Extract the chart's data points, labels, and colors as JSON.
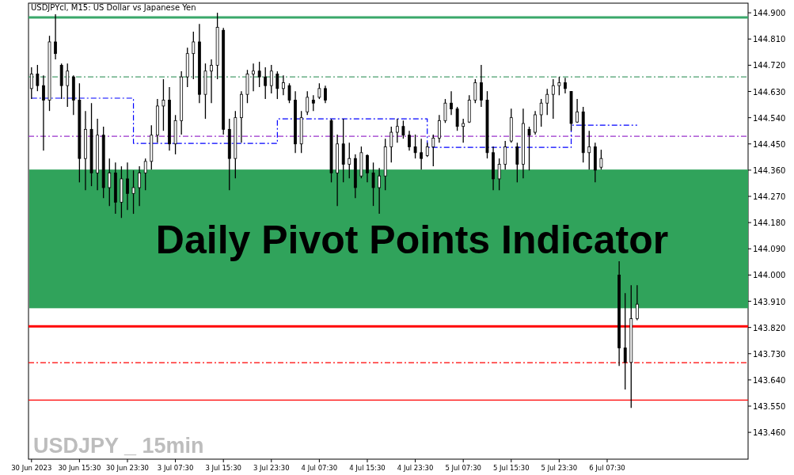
{
  "chart_data": {
    "type": "candlestick",
    "title": "USDJPYcl, M15:  US Dollar vs Japanese Yen",
    "annotations": [
      "Daily Pivot Points Indicator",
      "USDJPY _ 15min"
    ],
    "color": "#000000",
    "categories": [
      "30 Jun 2023",
      null,
      null,
      null,
      null,
      null,
      null,
      null,
      "30 Jun 15:30",
      null,
      null,
      null,
      null,
      null,
      null,
      null,
      "30 Jun 23:30",
      null,
      null,
      null,
      null,
      null,
      null,
      null,
      "3 Jul 07:30",
      null,
      null,
      null,
      null,
      null,
      null,
      null,
      "3 Jul 15:30",
      null,
      null,
      null,
      null,
      null,
      null,
      null,
      "3 Jul 23:30",
      null,
      null,
      null,
      null,
      null,
      null,
      null,
      "4 Jul 07:30",
      null,
      null,
      null,
      null,
      null,
      null,
      null,
      "4 Jul 15:30",
      null,
      null,
      null,
      null,
      null,
      null,
      null,
      "4 Jul 23:30",
      null,
      null,
      null,
      null,
      null,
      null,
      null,
      "5 Jul 07:30",
      null,
      null,
      null,
      null,
      null,
      null,
      null,
      "5 Jul 15:30",
      null,
      null,
      null,
      null,
      null,
      null,
      null,
      "5 Jul 23:30",
      null,
      null,
      null,
      null,
      null,
      null,
      null,
      "6 Jul 07:30",
      null,
      null,
      null,
      null,
      null,
      null,
      null,
      null,
      null,
      null,
      null,
      null,
      null,
      null,
      null,
      null,
      null,
      null,
      null,
      null,
      null,
      null,
      null
    ],
    "ohlc": [
      [
        144.64,
        144.713,
        144.604,
        144.69
      ],
      [
        144.69,
        144.721,
        144.631,
        144.65
      ],
      [
        144.65,
        144.685,
        144.427,
        144.6
      ],
      [
        144.6,
        144.821,
        144.563,
        144.8
      ],
      [
        144.8,
        144.895,
        144.74,
        144.76
      ],
      [
        144.72,
        144.726,
        144.604,
        144.65
      ],
      [
        144.65,
        144.726,
        144.577,
        144.7
      ],
      [
        144.68,
        144.685,
        144.549,
        144.6
      ],
      [
        144.6,
        144.658,
        144.318,
        144.4
      ],
      [
        144.4,
        144.563,
        144.291,
        144.5
      ],
      [
        144.5,
        144.59,
        144.305,
        144.35
      ],
      [
        144.35,
        144.536,
        144.291,
        144.48
      ],
      [
        144.48,
        144.509,
        144.264,
        144.3
      ],
      [
        144.3,
        144.4,
        144.237,
        144.35
      ],
      [
        144.35,
        144.386,
        144.21,
        144.25
      ],
      [
        144.25,
        144.373,
        144.196,
        144.33
      ],
      [
        144.33,
        144.386,
        144.223,
        144.28
      ],
      [
        144.28,
        144.359,
        144.21,
        144.3
      ],
      [
        144.3,
        144.373,
        144.237,
        144.35
      ],
      [
        144.35,
        144.4,
        144.291,
        144.39
      ],
      [
        144.39,
        144.514,
        144.362,
        144.48
      ],
      [
        144.48,
        144.604,
        144.454,
        144.58
      ],
      [
        144.58,
        144.672,
        144.495,
        144.6
      ],
      [
        144.6,
        144.645,
        144.427,
        144.45
      ],
      [
        144.45,
        144.549,
        144.414,
        144.53
      ],
      [
        144.53,
        144.699,
        144.482,
        144.68
      ],
      [
        144.68,
        144.78,
        144.645,
        144.76
      ],
      [
        144.76,
        144.835,
        144.672,
        144.8
      ],
      [
        144.8,
        144.862,
        144.59,
        144.62
      ],
      [
        144.62,
        144.726,
        144.536,
        144.7
      ],
      [
        144.7,
        144.74,
        144.59,
        144.72
      ],
      [
        144.72,
        144.9,
        144.672,
        144.85
      ],
      [
        144.84,
        144.848,
        144.482,
        144.5
      ],
      [
        144.5,
        144.536,
        144.291,
        144.4
      ],
      [
        144.4,
        144.563,
        144.332,
        144.54
      ],
      [
        144.54,
        144.631,
        144.454,
        144.62
      ],
      [
        144.62,
        144.704,
        144.59,
        144.69
      ],
      [
        144.69,
        144.726,
        144.631,
        144.7
      ],
      [
        144.7,
        144.732,
        144.645,
        144.68
      ],
      [
        144.68,
        144.713,
        144.604,
        144.65
      ],
      [
        144.65,
        144.721,
        144.623,
        144.7
      ],
      [
        144.69,
        144.699,
        144.604,
        144.64
      ],
      [
        144.64,
        144.685,
        144.617,
        144.66
      ],
      [
        144.65,
        144.658,
        144.59,
        144.6
      ],
      [
        144.6,
        144.631,
        144.419,
        144.45
      ],
      [
        144.45,
        144.563,
        144.419,
        144.54
      ],
      [
        144.56,
        144.631,
        144.549,
        144.61
      ],
      [
        144.6,
        144.617,
        144.563,
        144.59
      ],
      [
        144.61,
        144.658,
        144.604,
        144.64
      ],
      [
        144.64,
        144.65,
        144.59,
        144.6
      ],
      [
        144.53,
        144.536,
        144.318,
        144.35
      ],
      [
        144.35,
        144.482,
        144.237,
        144.45
      ],
      [
        144.45,
        144.536,
        144.318,
        144.38
      ],
      [
        144.38,
        144.454,
        144.332,
        144.4
      ],
      [
        144.4,
        144.414,
        144.264,
        144.3
      ],
      [
        144.34,
        144.441,
        144.332,
        144.42
      ],
      [
        144.41,
        144.414,
        144.318,
        144.35
      ],
      [
        144.35,
        144.386,
        144.237,
        144.3
      ],
      [
        144.3,
        144.367,
        144.21,
        144.34
      ],
      [
        144.34,
        144.468,
        144.291,
        144.44
      ],
      [
        144.44,
        144.509,
        144.386,
        144.49
      ],
      [
        144.49,
        144.536,
        144.454,
        144.51
      ],
      [
        144.51,
        144.53,
        144.468,
        144.48
      ],
      [
        144.48,
        144.495,
        144.427,
        144.44
      ],
      [
        144.44,
        144.482,
        144.4,
        144.42
      ],
      [
        144.42,
        144.468,
        144.362,
        144.4
      ],
      [
        144.41,
        144.454,
        144.405,
        144.44
      ],
      [
        144.44,
        144.482,
        144.373,
        144.47
      ],
      [
        144.47,
        144.549,
        144.454,
        144.53
      ],
      [
        144.53,
        144.604,
        144.522,
        144.59
      ],
      [
        144.59,
        144.631,
        144.549,
        144.57
      ],
      [
        144.57,
        144.577,
        144.495,
        144.51
      ],
      [
        144.51,
        144.536,
        144.454,
        144.52
      ],
      [
        144.525,
        144.617,
        144.522,
        144.6
      ],
      [
        144.6,
        144.672,
        144.59,
        144.66
      ],
      [
        144.66,
        144.721,
        144.577,
        144.6
      ],
      [
        144.6,
        144.631,
        144.4,
        144.42
      ],
      [
        144.42,
        144.441,
        144.291,
        144.33
      ],
      [
        144.33,
        144.4,
        144.291,
        144.38
      ],
      [
        144.38,
        144.46,
        144.362,
        144.44
      ],
      [
        144.46,
        144.571,
        144.454,
        144.54
      ],
      [
        144.44,
        144.454,
        144.318,
        144.38
      ],
      [
        144.38,
        144.571,
        144.332,
        144.52
      ],
      [
        144.5,
        144.509,
        144.359,
        144.48
      ],
      [
        144.49,
        144.563,
        144.482,
        144.55
      ],
      [
        144.55,
        144.604,
        144.509,
        144.59
      ],
      [
        144.59,
        144.639,
        144.549,
        144.62
      ],
      [
        144.62,
        144.672,
        144.536,
        144.65
      ],
      [
        144.65,
        144.68,
        144.617,
        144.66
      ],
      [
        144.66,
        144.677,
        144.623,
        144.64
      ],
      [
        144.63,
        144.631,
        144.495,
        144.52
      ],
      [
        144.525,
        144.604,
        144.522,
        144.56
      ],
      [
        144.56,
        144.577,
        144.386,
        144.42
      ],
      [
        144.42,
        144.495,
        144.362,
        144.44
      ],
      [
        144.44,
        144.454,
        144.318,
        144.36
      ],
      [
        144.37,
        144.43,
        144.362,
        144.4
      ],
      null,
      null,
      [
        144.0,
        144.047,
        143.688,
        143.75
      ],
      [
        143.75,
        143.938,
        143.607,
        143.7
      ],
      [
        143.7,
        143.965,
        143.544,
        143.85
      ],
      [
        143.85,
        143.965,
        143.845,
        143.9
      ],
      null,
      null,
      null,
      null,
      null,
      null,
      null,
      null,
      null,
      null,
      null,
      null,
      null,
      null,
      null,
      null,
      null,
      null
    ],
    "series": [
      {
        "type": "step",
        "color": "#0000ff",
        "line_style": "dashed",
        "values": [
          144.607,
          144.607,
          144.607,
          144.607,
          144.607,
          144.607,
          144.607,
          144.607,
          144.607,
          144.607,
          144.607,
          144.607,
          144.607,
          144.607,
          144.607,
          144.607,
          144.607,
          144.452,
          144.452,
          144.452,
          144.452,
          144.452,
          144.452,
          144.452,
          144.452,
          144.452,
          144.452,
          144.452,
          144.452,
          144.452,
          144.452,
          144.452,
          144.452,
          144.452,
          144.452,
          144.452,
          144.452,
          144.452,
          144.452,
          144.452,
          144.452,
          144.536,
          144.536,
          144.536,
          144.536,
          144.536,
          144.536,
          144.536,
          144.536,
          144.536,
          144.536,
          144.536,
          144.536,
          144.536,
          144.536,
          144.536,
          144.536,
          144.536,
          144.536,
          144.536,
          144.536,
          144.536,
          144.536,
          144.536,
          144.536,
          144.536,
          144.438,
          144.438,
          144.438,
          144.438,
          144.438,
          144.438,
          144.438,
          144.438,
          144.438,
          144.438,
          144.438,
          144.438,
          144.438,
          144.438,
          144.438,
          144.438,
          144.438,
          144.438,
          144.438,
          144.438,
          144.438,
          144.438,
          144.438,
          144.438,
          144.514,
          144.514,
          144.514,
          144.514,
          144.514,
          144.514,
          144.514,
          144.514,
          144.514,
          144.514,
          144.514,
          144.514,
          null,
          null,
          null,
          null,
          null,
          null,
          null,
          null,
          null,
          null,
          null,
          null,
          null,
          null,
          null,
          null,
          null,
          null
        ]
      }
    ],
    "ref_lines": [
      {
        "axis": "y",
        "value": 144.884,
        "color": "#3aa86a",
        "line_style": "solid"
      },
      {
        "axis": "y",
        "value": 144.68,
        "color": "#4a9e6e",
        "line_style": "dashed"
      },
      {
        "axis": "y",
        "value": 144.476,
        "color": "#9932cc",
        "line_style": "dashed"
      },
      {
        "axis": "y",
        "value": 143.824,
        "color": "#ff0000",
        "line_style": "solid"
      },
      {
        "axis": "y",
        "value": 143.699,
        "color": "#ff0000",
        "line_style": "dashed"
      },
      {
        "axis": "y",
        "value": 143.571,
        "color": "#ff0000",
        "line_style": "solid"
      }
    ],
    "ylim": [
      143.368,
      144.933
    ],
    "yticks": [
      {
        "value": 144.9,
        "label": "144.900"
      },
      {
        "value": 144.81,
        "label": "144.810"
      },
      {
        "value": 144.72,
        "label": "144.720"
      },
      {
        "value": 144.63,
        "label": "144.630"
      },
      {
        "value": 144.54,
        "label": "144.540"
      },
      {
        "value": 144.45,
        "label": "144.450"
      },
      {
        "value": 144.36,
        "label": "144.360"
      },
      {
        "value": 144.27,
        "label": "144.270"
      },
      {
        "value": 144.18,
        "label": "144.180"
      },
      {
        "value": 144.09,
        "label": "144.090"
      },
      {
        "value": 144,
        "label": "144.000"
      },
      {
        "value": 143.91,
        "label": "143.910"
      },
      {
        "value": 143.82,
        "label": "143.820"
      },
      {
        "value": 143.73,
        "label": "143.730"
      },
      {
        "value": 143.64,
        "label": "143.640"
      },
      {
        "value": 143.55,
        "label": "143.550"
      },
      {
        "value": 143.46,
        "label": "143.460"
      }
    ],
    "grid": false
  }
}
